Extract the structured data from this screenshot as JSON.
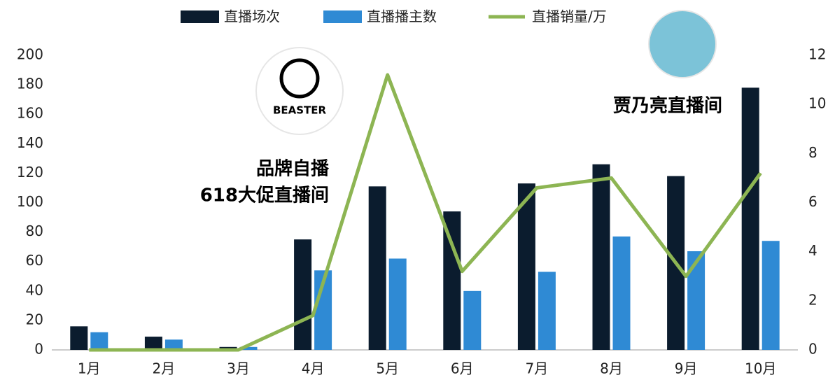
{
  "chart_data": {
    "type": "bar",
    "categories": [
      "1月",
      "2月",
      "3月",
      "4月",
      "5月",
      "6月",
      "7月",
      "8月",
      "9月",
      "10月"
    ],
    "series": [
      {
        "name": "直播场次",
        "color": "#0b1c2e",
        "values": [
          16,
          9,
          2,
          75,
          111,
          94,
          113,
          126,
          118,
          178
        ]
      },
      {
        "name": "直播播主数",
        "color": "#2f8ad4",
        "values": [
          12,
          7,
          2,
          54,
          62,
          40,
          53,
          77,
          67,
          74
        ]
      },
      {
        "name": "直播销量/万",
        "color": "#8db553",
        "type": "line",
        "axis": "y2",
        "values": [
          0,
          0,
          0,
          1.4,
          11.2,
          3.2,
          6.6,
          7.0,
          3.0,
          7.2
        ]
      }
    ],
    "ylim": [
      0,
      200
    ],
    "yticks": [
      0,
      20,
      40,
      60,
      80,
      100,
      120,
      140,
      160,
      180,
      200
    ],
    "y2lim": [
      0,
      12
    ],
    "y2ticks": [
      0,
      2,
      4,
      6,
      8,
      10,
      12
    ],
    "grid": false,
    "annotations": [
      "品牌自播",
      "618大促直播间",
      "贾乃亮直播间",
      "BEASTER"
    ]
  }
}
